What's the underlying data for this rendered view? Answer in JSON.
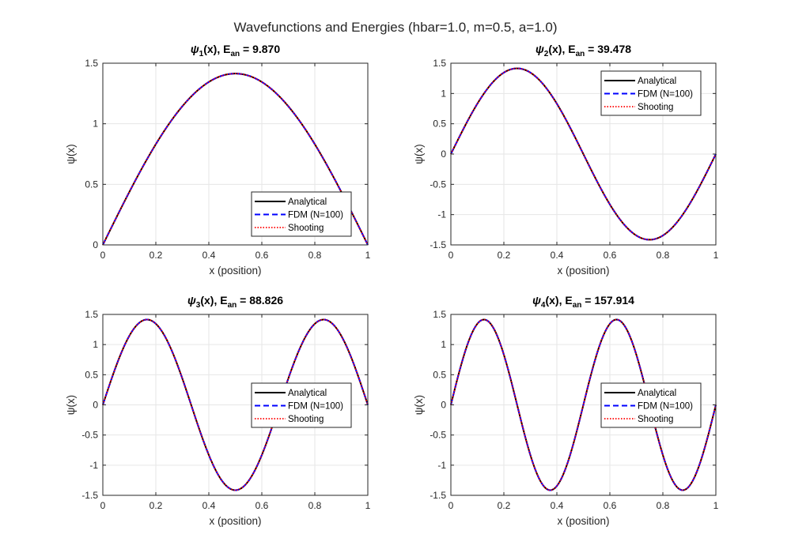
{
  "figure": {
    "title": "Wavefunctions and Energies (hbar=1.0, m=0.5, a=1.0)"
  },
  "colors": {
    "analytical": "#000000",
    "fdm": "#0000ff",
    "shooting": "#ff0000",
    "grid": "#e6e6e6",
    "axes": "#262626"
  },
  "chart_data": [
    {
      "type": "line",
      "title_prefix": "ψ",
      "title_sub": "1",
      "title_mid": "(x), E",
      "title_sub2": "an",
      "title_value": " = 9.870",
      "n": 1,
      "xlabel": "x (position)",
      "ylabel": "ψ(x)",
      "xlim": [
        0,
        1
      ],
      "ylim": [
        0,
        1.5
      ],
      "xticks": [
        0,
        0.2,
        0.4,
        0.6,
        0.8,
        1
      ],
      "xtick_labels": [
        "0",
        "0.2",
        "0.4",
        "0.6",
        "0.8",
        "1"
      ],
      "yticks": [
        0,
        0.5,
        1,
        1.5
      ],
      "ytick_labels": [
        "0",
        "0.5",
        "1",
        "1.5"
      ],
      "grid": true,
      "legend": "lower-right",
      "series": [
        {
          "name": "Analytical",
          "style": "solid",
          "function": "sqrt(2)*sin(1*pi*x)"
        },
        {
          "name": "FDM (N=100)",
          "style": "dashed",
          "function": "sqrt(2)*sin(1*pi*x)"
        },
        {
          "name": "Shooting",
          "style": "dotted",
          "function": "sqrt(2)*sin(1*pi*x)"
        }
      ]
    },
    {
      "type": "line",
      "title_prefix": "ψ",
      "title_sub": "2",
      "title_mid": "(x), E",
      "title_sub2": "an",
      "title_value": " = 39.478",
      "n": 2,
      "xlabel": "x (position)",
      "ylabel": "ψ(x)",
      "xlim": [
        0,
        1
      ],
      "ylim": [
        -1.5,
        1.5
      ],
      "xticks": [
        0,
        0.2,
        0.4,
        0.6,
        0.8,
        1
      ],
      "xtick_labels": [
        "0",
        "0.2",
        "0.4",
        "0.6",
        "0.8",
        "1"
      ],
      "yticks": [
        -1.5,
        -1,
        -0.5,
        0,
        0.5,
        1,
        1.5
      ],
      "ytick_labels": [
        "-1.5",
        "-1",
        "-0.5",
        "0",
        "0.5",
        "1",
        "1.5"
      ],
      "grid": true,
      "legend": "upper-right",
      "series": [
        {
          "name": "Analytical",
          "style": "solid",
          "function": "sqrt(2)*sin(2*pi*x)"
        },
        {
          "name": "FDM (N=100)",
          "style": "dashed",
          "function": "sqrt(2)*sin(2*pi*x)"
        },
        {
          "name": "Shooting",
          "style": "dotted",
          "function": "sqrt(2)*sin(2*pi*x)"
        }
      ]
    },
    {
      "type": "line",
      "title_prefix": "ψ",
      "title_sub": "3",
      "title_mid": "(x), E",
      "title_sub2": "an",
      "title_value": " = 88.826",
      "n": 3,
      "xlabel": "x (position)",
      "ylabel": "ψ(x)",
      "xlim": [
        0,
        1
      ],
      "ylim": [
        -1.5,
        1.5
      ],
      "xticks": [
        0,
        0.2,
        0.4,
        0.6,
        0.8,
        1
      ],
      "xtick_labels": [
        "0",
        "0.2",
        "0.4",
        "0.6",
        "0.8",
        "1"
      ],
      "yticks": [
        -1.5,
        -1,
        -0.5,
        0,
        0.5,
        1,
        1.5
      ],
      "ytick_labels": [
        "-1.5",
        "-1",
        "-0.5",
        "0",
        "0.5",
        "1",
        "1.5"
      ],
      "grid": true,
      "legend": "right",
      "series": [
        {
          "name": "Analytical",
          "style": "solid",
          "function": "sqrt(2)*sin(3*pi*x)"
        },
        {
          "name": "FDM (N=100)",
          "style": "dashed",
          "function": "sqrt(2)*sin(3*pi*x)"
        },
        {
          "name": "Shooting",
          "style": "dotted",
          "function": "sqrt(2)*sin(3*pi*x)"
        }
      ]
    },
    {
      "type": "line",
      "title_prefix": "ψ",
      "title_sub": "4",
      "title_mid": "(x), E",
      "title_sub2": "an",
      "title_value": " = 157.914",
      "n": 4,
      "xlabel": "x (position)",
      "ylabel": "ψ(x)",
      "xlim": [
        0,
        1
      ],
      "ylim": [
        -1.5,
        1.5
      ],
      "xticks": [
        0,
        0.2,
        0.4,
        0.6,
        0.8,
        1
      ],
      "xtick_labels": [
        "0",
        "0.2",
        "0.4",
        "0.6",
        "0.8",
        "1"
      ],
      "yticks": [
        -1.5,
        -1,
        -0.5,
        0,
        0.5,
        1,
        1.5
      ],
      "ytick_labels": [
        "-1.5",
        "-1",
        "-0.5",
        "0",
        "0.5",
        "1",
        "1.5"
      ],
      "grid": true,
      "legend": "right",
      "series": [
        {
          "name": "Analytical",
          "style": "solid",
          "function": "sqrt(2)*sin(4*pi*x)"
        },
        {
          "name": "FDM (N=100)",
          "style": "dashed",
          "function": "sqrt(2)*sin(4*pi*x)"
        },
        {
          "name": "Shooting",
          "style": "dotted",
          "function": "sqrt(2)*sin(4*pi*x)"
        }
      ]
    }
  ]
}
